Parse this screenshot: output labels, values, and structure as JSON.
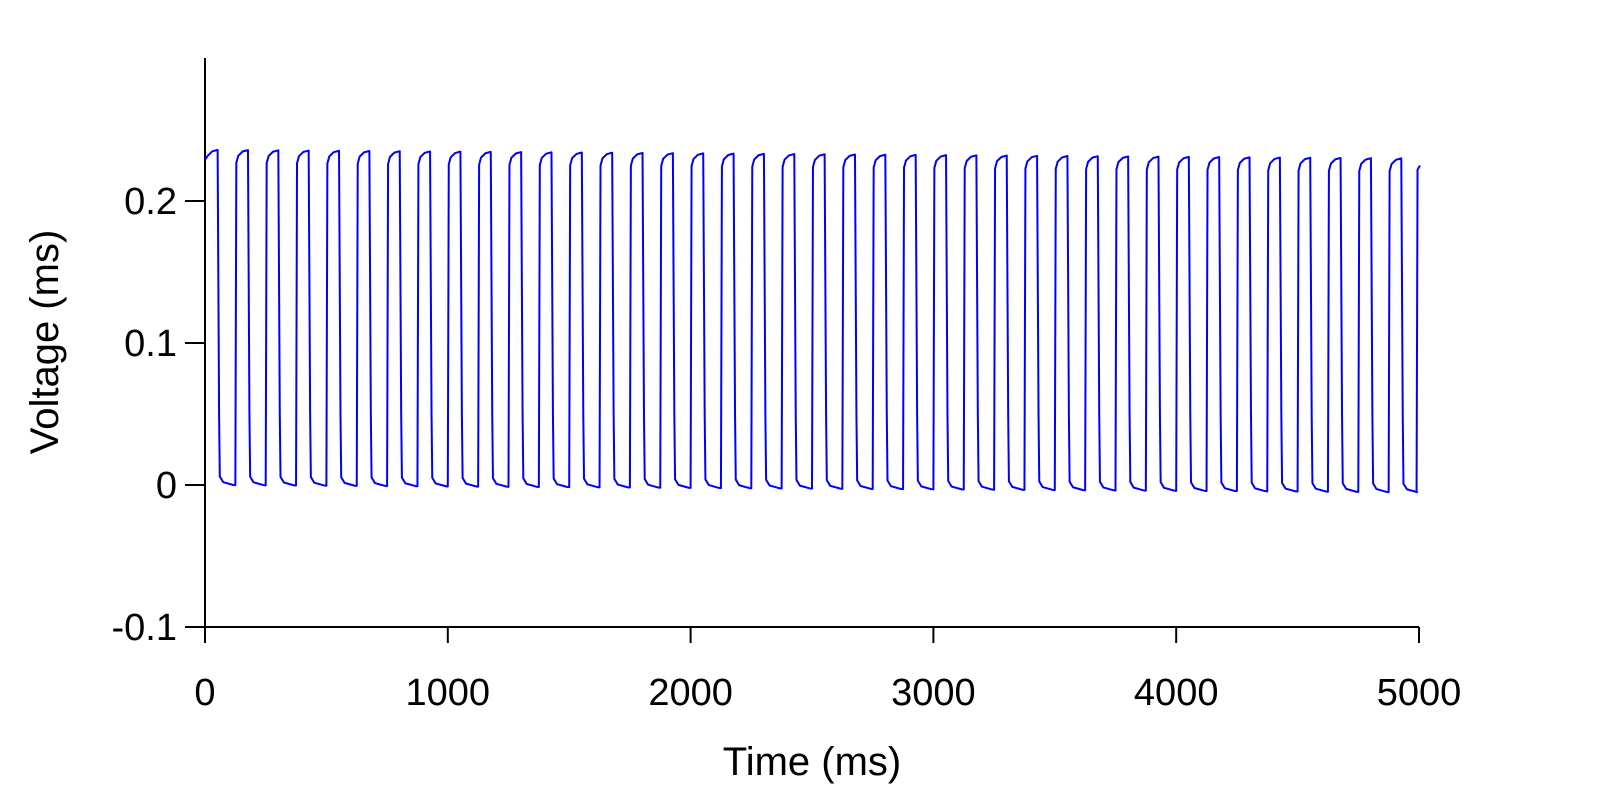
{
  "chart_data": {
    "type": "line",
    "title": "",
    "xlabel": "Time (ms)",
    "ylabel": "Voltage (ms)",
    "xlim": [
      0,
      5000
    ],
    "ylim": [
      -0.1,
      0.3
    ],
    "xticks": [
      0,
      1000,
      2000,
      3000,
      4000,
      5000
    ],
    "xtick_labels": [
      "0",
      "1000",
      "2000",
      "3000",
      "4000",
      "5000"
    ],
    "yticks": [
      -0.1,
      0,
      0.1,
      0.2
    ],
    "ytick_labels": [
      "-0.1",
      "0",
      "0.1",
      "0.2"
    ],
    "grid": false,
    "legend": "none",
    "series": [
      {
        "color": "#0000ff",
        "description": "Periodic square-like oscillation, period ~125 ms, 40 cycles",
        "period_ms": 125,
        "cycles": 40,
        "x_start": 0,
        "x_end": 4990,
        "high_level_start": 0.235,
        "high_level_end": 0.229,
        "low_level_start": 0.0,
        "low_level_end": -0.005,
        "high_duration_ms": 55,
        "low_duration_ms": 70,
        "final_value": 0.225
      }
    ]
  },
  "colors": {
    "series": "#0000ff",
    "axes": "#000000",
    "background": "#ffffff"
  }
}
